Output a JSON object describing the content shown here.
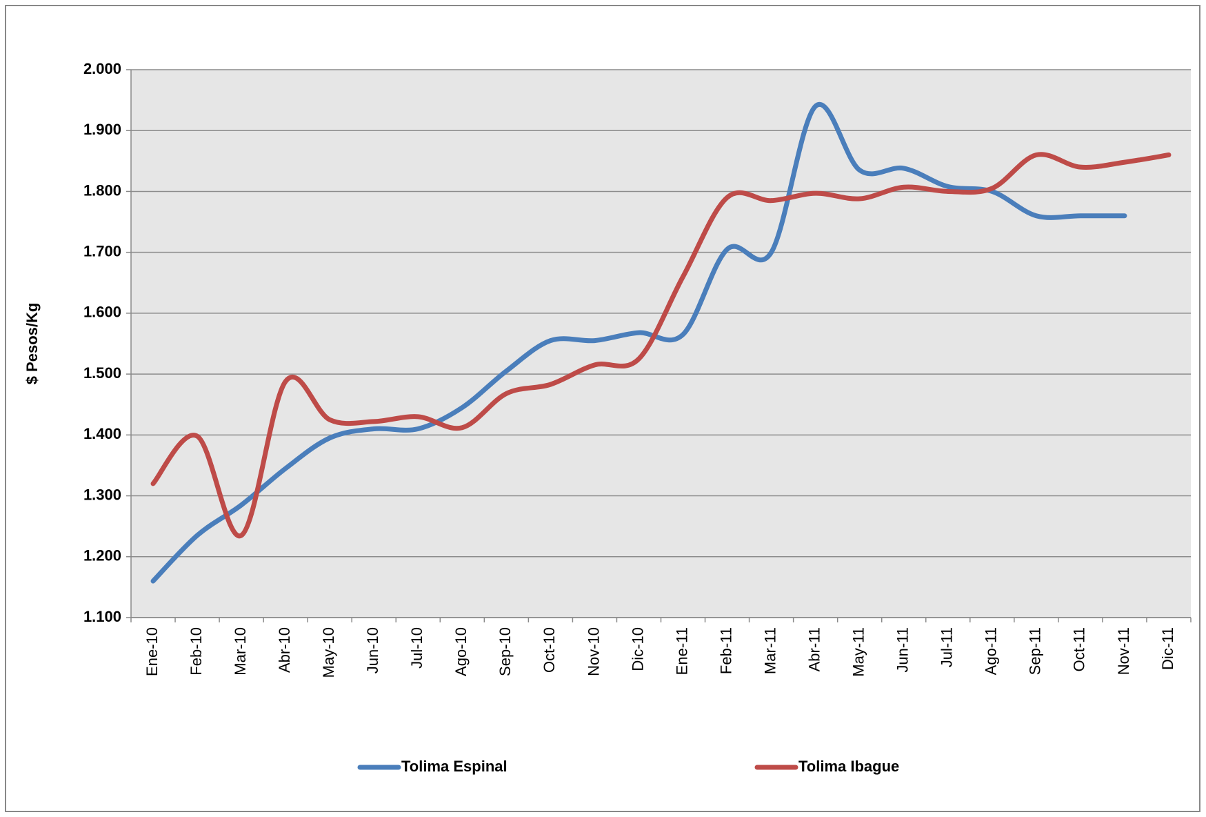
{
  "chart_data": {
    "type": "line",
    "y_label": "$ Pesos/Kg",
    "categories": [
      "Ene-10",
      "Feb-10",
      "Mar-10",
      "Abr-10",
      "May-10",
      "Jun-10",
      "Jul-10",
      "Ago-10",
      "Sep-10",
      "Oct-10",
      "Nov-10",
      "Dic-10",
      "Ene-11",
      "Feb-11",
      "Mar-11",
      "Abr-11",
      "May-11",
      "Jun-11",
      "Jul-11",
      "Ago-11",
      "Sep-11",
      "Oct-11",
      "Nov-11",
      "Dic-11"
    ],
    "series": [
      {
        "name": "Tolima Espinal",
        "color": "#4a7ebb",
        "values": [
          1160,
          1235,
          1285,
          1345,
          1395,
          1410,
          1410,
          1445,
          1505,
          1555,
          1555,
          1568,
          1565,
          1705,
          1700,
          1940,
          1835,
          1838,
          1808,
          1800,
          1760,
          1760,
          1760,
          null
        ]
      },
      {
        "name": "Tolima Ibague",
        "color": "#be4b48",
        "values": [
          1320,
          1398,
          1235,
          1488,
          1425,
          1422,
          1430,
          1412,
          1468,
          1483,
          1515,
          1525,
          1660,
          1790,
          1785,
          1797,
          1788,
          1807,
          1800,
          1805,
          1860,
          1840,
          1848,
          1860
        ]
      }
    ],
    "ylim": [
      1100,
      2000
    ],
    "yticks": [
      {
        "value": 1100,
        "label": "1.100"
      },
      {
        "value": 1200,
        "label": "1.200"
      },
      {
        "value": 1300,
        "label": "1.300"
      },
      {
        "value": 1400,
        "label": "1.400"
      },
      {
        "value": 1500,
        "label": "1.500"
      },
      {
        "value": 1600,
        "label": "1.600"
      },
      {
        "value": 1700,
        "label": "1.700"
      },
      {
        "value": 1800,
        "label": "1.800"
      },
      {
        "value": 1900,
        "label": "1.900"
      },
      {
        "value": 2000,
        "label": "2.000"
      }
    ],
    "grid": true,
    "smooth": true,
    "legend": "bottom"
  }
}
